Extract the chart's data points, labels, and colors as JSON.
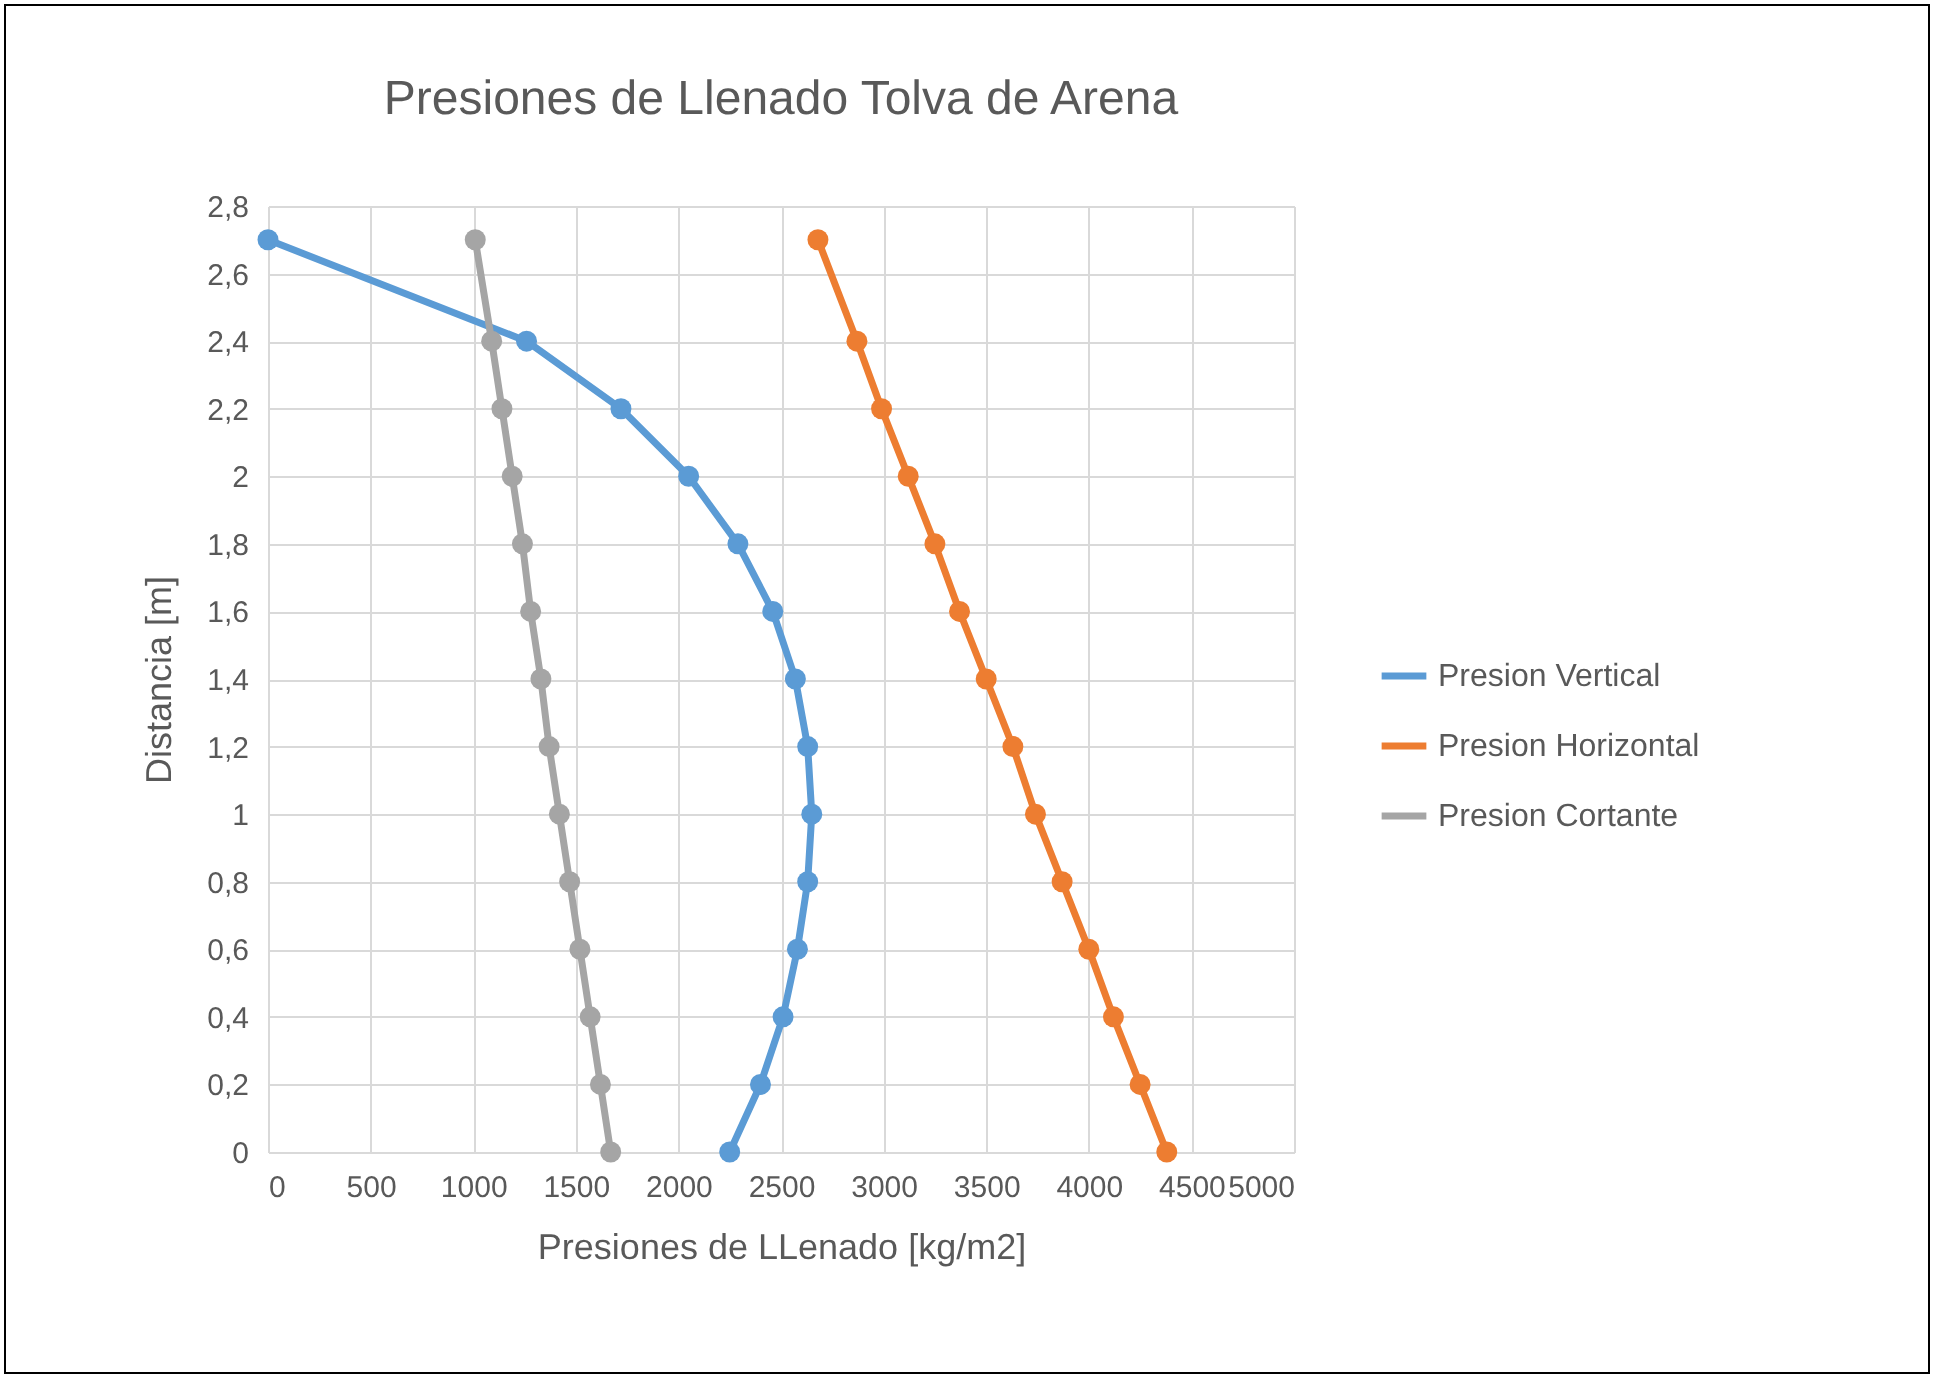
{
  "chart_data": {
    "type": "line",
    "title": "Presiones de Llenado Tolva de Arena",
    "xlabel": "Presiones de LLenado [kg/m2]",
    "ylabel": "Distancia [m]",
    "series": [
      {
        "name": "Presion Vertical",
        "color": "#5b9bd5",
        "x": [
          2250,
          2400,
          2510,
          2580,
          2630,
          2650,
          2630,
          2570,
          2460,
          2290,
          2050,
          1720,
          1260,
          0
        ],
        "values": [
          0,
          0.2,
          0.4,
          0.6,
          0.8,
          1,
          1.2,
          1.4,
          1.6,
          1.8,
          2,
          2.2,
          2.4,
          2.7
        ]
      },
      {
        "name": "Presion Horizontal",
        "color": "#ed7d31",
        "x": [
          4380,
          4250,
          4120,
          4000,
          3870,
          3740,
          3630,
          3500,
          3370,
          3250,
          3120,
          2990,
          2870,
          2680
        ],
        "values": [
          0,
          0.2,
          0.4,
          0.6,
          0.8,
          1,
          1.2,
          1.4,
          1.6,
          1.8,
          2,
          2.2,
          2.4,
          2.7
        ]
      },
      {
        "name": "Presion Cortante",
        "color": "#a5a5a5",
        "x": [
          1670,
          1620,
          1570,
          1520,
          1470,
          1420,
          1370,
          1330,
          1280,
          1240,
          1190,
          1140,
          1090,
          1010
        ],
        "values": [
          0,
          0.2,
          0.4,
          0.6,
          0.8,
          1,
          1.2,
          1.4,
          1.6,
          1.8,
          2,
          2.2,
          2.4,
          2.7
        ]
      }
    ],
    "xlim": [
      0,
      5000
    ],
    "xticks": [
      0,
      500,
      1000,
      1500,
      2000,
      2500,
      3000,
      3500,
      4000,
      4500,
      5000
    ],
    "ylim": [
      0,
      2.8
    ],
    "yticks": [
      0,
      {
        "value": 0.2,
        "label": "0,2"
      },
      {
        "value": 0.4,
        "label": "0,4"
      },
      {
        "value": 0.6,
        "label": "0,6"
      },
      {
        "value": 0.8,
        "label": "0,8"
      },
      1,
      {
        "value": 1.2,
        "label": "1,2"
      },
      {
        "value": 1.4,
        "label": "1,4"
      },
      {
        "value": 1.6,
        "label": "1,6"
      },
      {
        "value": 1.8,
        "label": "1,8"
      },
      2,
      {
        "value": 2.2,
        "label": "2,2"
      },
      {
        "value": 2.4,
        "label": "2,4"
      },
      {
        "value": 2.6,
        "label": "2,6"
      },
      {
        "value": 2.8,
        "label": "2,8"
      }
    ],
    "grid": true,
    "legend": "right",
    "marker": "circle",
    "line_style": "solid"
  }
}
